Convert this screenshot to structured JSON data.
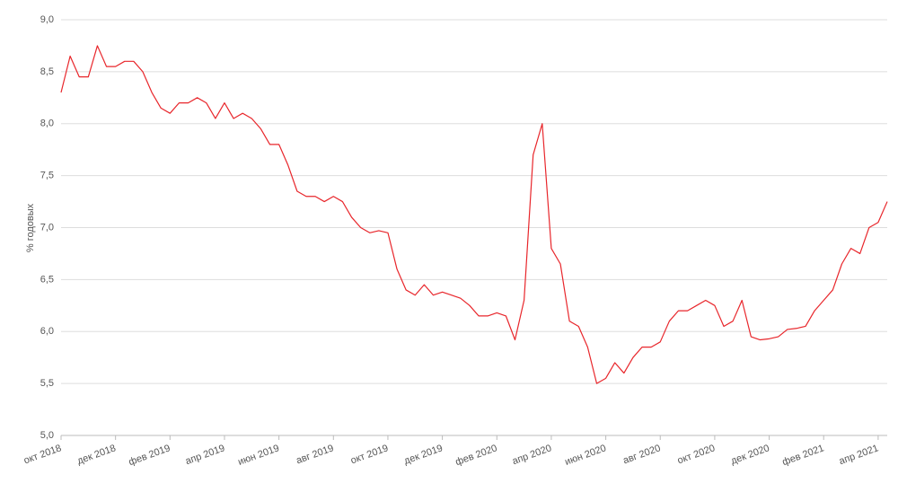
{
  "chart_data": {
    "type": "line",
    "y_label": "% годовых",
    "categories": [
      "окт 2018",
      null,
      null,
      null,
      null,
      null,
      "дек 2018",
      null,
      null,
      null,
      null,
      null,
      "фев 2019",
      null,
      null,
      null,
      null,
      null,
      "апр 2019",
      null,
      null,
      null,
      null,
      null,
      "июн 2019",
      null,
      null,
      null,
      null,
      null,
      "авг 2019",
      null,
      null,
      null,
      null,
      null,
      "окт 2019",
      null,
      null,
      null,
      null,
      null,
      "дек 2019",
      null,
      null,
      null,
      null,
      null,
      "фев 2020",
      null,
      null,
      null,
      null,
      null,
      "апр 2020",
      null,
      null,
      null,
      null,
      null,
      "июн 2020",
      null,
      null,
      null,
      null,
      null,
      "авг 2020",
      null,
      null,
      null,
      null,
      null,
      "окт 2020",
      null,
      null,
      null,
      null,
      null,
      "дек 2020",
      null,
      null,
      null,
      null,
      null,
      "фев 2021",
      null,
      null,
      null,
      null,
      null,
      "апр 2021",
      null
    ],
    "series": [
      {
        "color": "#e8262b",
        "values": [
          8.3,
          8.65,
          8.45,
          8.45,
          8.75,
          8.55,
          8.55,
          8.6,
          8.6,
          8.5,
          8.3,
          8.15,
          8.1,
          8.2,
          8.2,
          8.25,
          8.2,
          8.05,
          8.2,
          8.05,
          8.1,
          8.05,
          7.95,
          7.8,
          7.8,
          7.6,
          7.35,
          7.3,
          7.3,
          7.25,
          7.3,
          7.25,
          7.1,
          7.0,
          6.95,
          6.97,
          6.95,
          6.6,
          6.4,
          6.35,
          6.45,
          6.35,
          6.38,
          6.35,
          6.32,
          6.25,
          6.15,
          6.15,
          6.18,
          6.15,
          5.92,
          6.3,
          7.7,
          8.0,
          6.8,
          6.65,
          6.1,
          6.05,
          5.85,
          5.5,
          5.55,
          5.7,
          5.6,
          5.75,
          5.85,
          5.85,
          5.9,
          6.1,
          6.2,
          6.2,
          6.25,
          6.3,
          6.25,
          6.05,
          6.1,
          6.3,
          5.95,
          5.92,
          5.93,
          5.95,
          6.02,
          6.03,
          6.05,
          6.2,
          6.3,
          6.4,
          6.65,
          6.8,
          6.75,
          7.0,
          7.05,
          7.25
        ]
      }
    ],
    "ylim": [
      5,
      9
    ],
    "yticks": [
      {
        "value": 5,
        "label": "5,0"
      },
      {
        "value": 5.5,
        "label": "5,5"
      },
      {
        "value": 6,
        "label": "6,0"
      },
      {
        "value": 6.5,
        "label": "6,5"
      },
      {
        "value": 7,
        "label": "7,0"
      },
      {
        "value": 7.5,
        "label": "7,5"
      },
      {
        "value": 8,
        "label": "8,0"
      },
      {
        "value": 8.5,
        "label": "8,5"
      },
      {
        "value": 9,
        "label": "9,0"
      }
    ],
    "grid": true
  }
}
